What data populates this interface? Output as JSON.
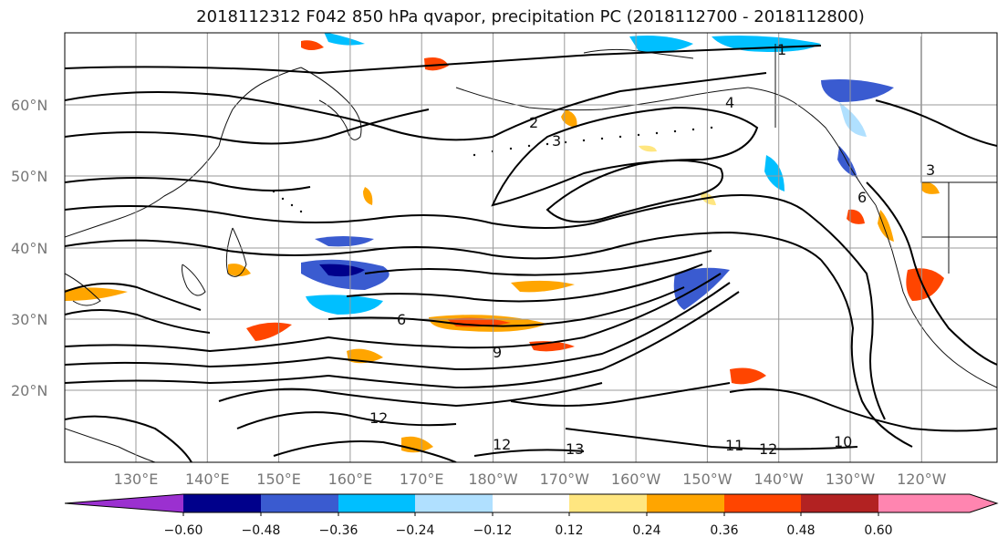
{
  "title": "2018112312 F042 850 hPa qvapor, precipitation PC (2018112700 - 2018112800)",
  "lat_labels": [
    "20°N",
    "30°N",
    "40°N",
    "50°N",
    "60°N"
  ],
  "lon_labels": [
    "130°E",
    "140°E",
    "150°E",
    "160°E",
    "170°E",
    "180°W",
    "170°W",
    "160°W",
    "150°W",
    "140°W",
    "130°W",
    "120°W"
  ],
  "colorbar": {
    "tick_labels": [
      "−0.60",
      "−0.48",
      "−0.36",
      "−0.24",
      "−0.12",
      "0.12",
      "0.24",
      "0.36",
      "0.48",
      "0.60"
    ],
    "colors": [
      "#9b30d0",
      "#00008b",
      "#3a5bd0",
      "#00bfff",
      "#b0e0ff",
      "#ffffff",
      "#ffe680",
      "#ffa500",
      "#ff4500",
      "#b22222",
      "#ff85b0"
    ]
  },
  "contour_labels": [
    "1",
    "2",
    "3",
    "4",
    "6",
    "9",
    "10",
    "11",
    "12",
    "13"
  ]
}
